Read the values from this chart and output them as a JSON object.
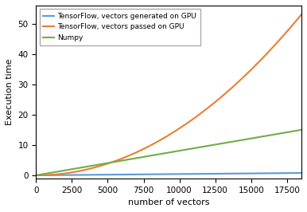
{
  "title": "",
  "xlabel": "number of vectors",
  "ylabel": "Execution time",
  "xlim": [
    0,
    18500
  ],
  "ylim": [
    -1,
    56
  ],
  "yticks": [
    0,
    10,
    20,
    30,
    40,
    50
  ],
  "xticks": [
    0,
    2500,
    5000,
    7500,
    10000,
    12500,
    15000,
    17500
  ],
  "tf_gpu_gen_color": "#5b9bd5",
  "tf_gpu_passed_color": "#ed7d31",
  "numpy_color": "#70ad47",
  "legend_tf_gen": "TensorFlow, vectors generated on GPU",
  "legend_tf_passed": "TensorFlow, vectors passed on GPU",
  "legend_numpy": "Numpy",
  "bg_color": "#ffffff",
  "linewidth": 1.5,
  "tf_gen_scale": 4.2e-05,
  "tf_passed_scale": 1.58e-07,
  "numpy_scale": 0.0008
}
